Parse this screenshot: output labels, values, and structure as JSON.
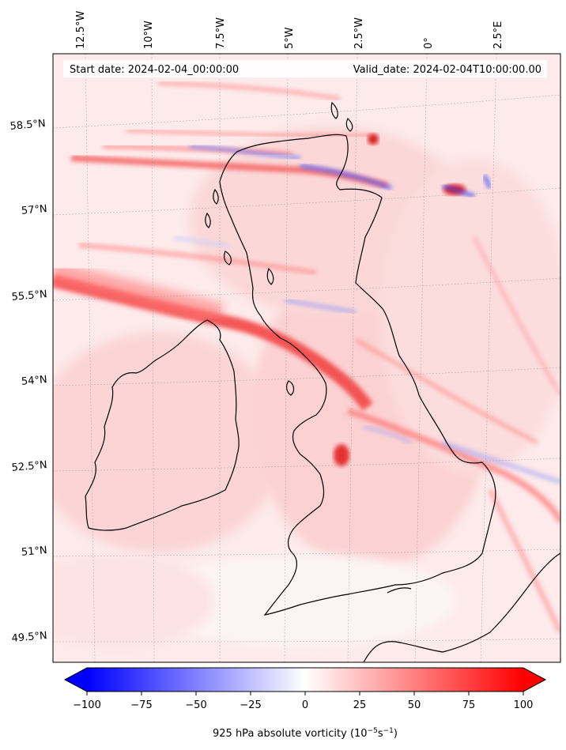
{
  "map": {
    "start_date": "Start date: 2024-02-04_00:00:00",
    "valid_date": "Valid_date: 2024-02-04T10:00:00.00",
    "lon_labels": [
      "12.5°W",
      "10°W",
      "7.5°W",
      "5°W",
      "2.5°W",
      "0°",
      "2.5°E"
    ],
    "lat_labels": [
      "58.5°N",
      "57°N",
      "55.5°N",
      "54°N",
      "52.5°N",
      "51°N",
      "49.5°N"
    ],
    "colorbar": {
      "min": -100,
      "max": 100,
      "ticks": [
        "−100",
        "−75",
        "−50",
        "−25",
        "0",
        "25",
        "50",
        "75",
        "100"
      ],
      "label": "925 hPa absolute vorticity (10",
      "label_exp1": "−5",
      "label_mid": "s",
      "label_exp2": "−1",
      "label_end": ")",
      "colors": {
        "low": "#0000ff",
        "mid": "#ffffff",
        "high": "#ff0000"
      }
    }
  }
}
